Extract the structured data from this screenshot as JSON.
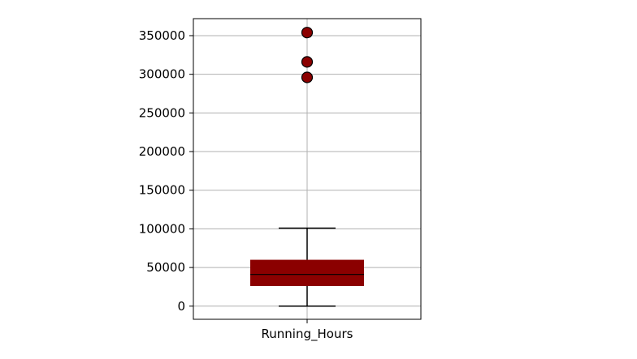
{
  "chart_data": {
    "type": "box",
    "categories": [
      "Running_Hours"
    ],
    "ylim": [
      -17000,
      372000
    ],
    "yticks": [
      0,
      50000,
      100000,
      150000,
      200000,
      250000,
      300000,
      350000
    ],
    "ytick_labels": [
      "0",
      "50000",
      "100000",
      "150000",
      "200000",
      "250000",
      "300000",
      "350000"
    ],
    "grid": true,
    "box": {
      "whisker_low": 0,
      "q1": 26000,
      "median": 41000,
      "q3": 60000,
      "whisker_high": 101000,
      "outliers": [
        296000,
        316000,
        354000
      ]
    },
    "colors": {
      "box_fill": "#8b0000",
      "outlier_fill": "#8b0000",
      "grid": "#b0b0b0",
      "axis": "#000000"
    }
  }
}
